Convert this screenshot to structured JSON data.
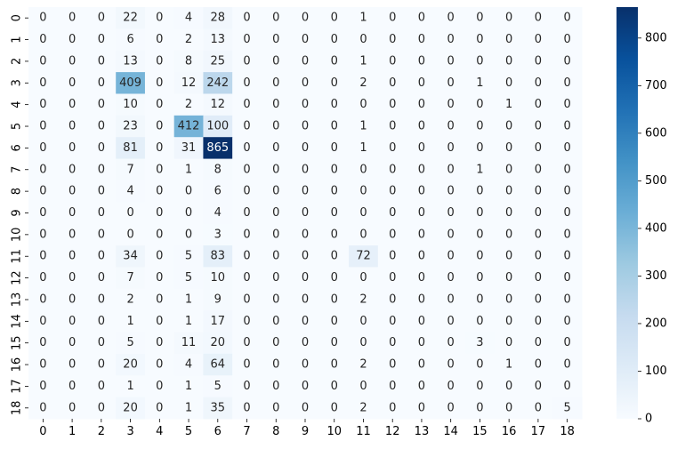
{
  "chart_data": {
    "type": "heatmap",
    "title": "",
    "xlabel": "",
    "ylabel": "",
    "x_labels": [
      "0",
      "1",
      "2",
      "3",
      "4",
      "5",
      "6",
      "7",
      "8",
      "9",
      "10",
      "11",
      "12",
      "13",
      "14",
      "15",
      "16",
      "17",
      "18"
    ],
    "y_labels": [
      "0",
      "1",
      "2",
      "3",
      "4",
      "5",
      "6",
      "7",
      "8",
      "9",
      "10",
      "11",
      "12",
      "13",
      "14",
      "15",
      "16",
      "17",
      "18"
    ],
    "values": [
      [
        0,
        0,
        0,
        22,
        0,
        4,
        28,
        0,
        0,
        0,
        0,
        1,
        0,
        0,
        0,
        0,
        0,
        0,
        0
      ],
      [
        0,
        0,
        0,
        6,
        0,
        2,
        13,
        0,
        0,
        0,
        0,
        0,
        0,
        0,
        0,
        0,
        0,
        0,
        0
      ],
      [
        0,
        0,
        0,
        13,
        0,
        8,
        25,
        0,
        0,
        0,
        0,
        1,
        0,
        0,
        0,
        0,
        0,
        0,
        0
      ],
      [
        0,
        0,
        0,
        409,
        0,
        12,
        242,
        0,
        0,
        0,
        0,
        2,
        0,
        0,
        0,
        1,
        0,
        0,
        0
      ],
      [
        0,
        0,
        0,
        10,
        0,
        2,
        12,
        0,
        0,
        0,
        0,
        0,
        0,
        0,
        0,
        0,
        1,
        0,
        0
      ],
      [
        0,
        0,
        0,
        23,
        0,
        412,
        100,
        0,
        0,
        0,
        0,
        1,
        0,
        0,
        0,
        0,
        0,
        0,
        0
      ],
      [
        0,
        0,
        0,
        81,
        0,
        31,
        865,
        0,
        0,
        0,
        0,
        1,
        0,
        0,
        0,
        0,
        0,
        0,
        0
      ],
      [
        0,
        0,
        0,
        7,
        0,
        1,
        8,
        0,
        0,
        0,
        0,
        0,
        0,
        0,
        0,
        1,
        0,
        0,
        0
      ],
      [
        0,
        0,
        0,
        4,
        0,
        0,
        6,
        0,
        0,
        0,
        0,
        0,
        0,
        0,
        0,
        0,
        0,
        0,
        0
      ],
      [
        0,
        0,
        0,
        0,
        0,
        0,
        4,
        0,
        0,
        0,
        0,
        0,
        0,
        0,
        0,
        0,
        0,
        0,
        0
      ],
      [
        0,
        0,
        0,
        0,
        0,
        0,
        3,
        0,
        0,
        0,
        0,
        0,
        0,
        0,
        0,
        0,
        0,
        0,
        0
      ],
      [
        0,
        0,
        0,
        34,
        0,
        5,
        83,
        0,
        0,
        0,
        0,
        72,
        0,
        0,
        0,
        0,
        0,
        0,
        0
      ],
      [
        0,
        0,
        0,
        7,
        0,
        5,
        10,
        0,
        0,
        0,
        0,
        0,
        0,
        0,
        0,
        0,
        0,
        0,
        0
      ],
      [
        0,
        0,
        0,
        2,
        0,
        1,
        9,
        0,
        0,
        0,
        0,
        2,
        0,
        0,
        0,
        0,
        0,
        0,
        0
      ],
      [
        0,
        0,
        0,
        1,
        0,
        1,
        17,
        0,
        0,
        0,
        0,
        0,
        0,
        0,
        0,
        0,
        0,
        0,
        0
      ],
      [
        0,
        0,
        0,
        5,
        0,
        11,
        20,
        0,
        0,
        0,
        0,
        0,
        0,
        0,
        0,
        3,
        0,
        0,
        0
      ],
      [
        0,
        0,
        0,
        20,
        0,
        4,
        64,
        0,
        0,
        0,
        0,
        2,
        0,
        0,
        0,
        0,
        1,
        0,
        0
      ],
      [
        0,
        0,
        0,
        1,
        0,
        1,
        5,
        0,
        0,
        0,
        0,
        0,
        0,
        0,
        0,
        0,
        0,
        0,
        0
      ],
      [
        0,
        0,
        0,
        20,
        0,
        1,
        35,
        0,
        0,
        0,
        0,
        2,
        0,
        0,
        0,
        0,
        0,
        0,
        5
      ]
    ],
    "colormap": "Blues",
    "vmin": 0,
    "vmax": 865,
    "colorbar_ticks": [
      "0",
      "100",
      "200",
      "300",
      "400",
      "500",
      "600",
      "700",
      "800"
    ],
    "annotated": true,
    "grid": false
  }
}
